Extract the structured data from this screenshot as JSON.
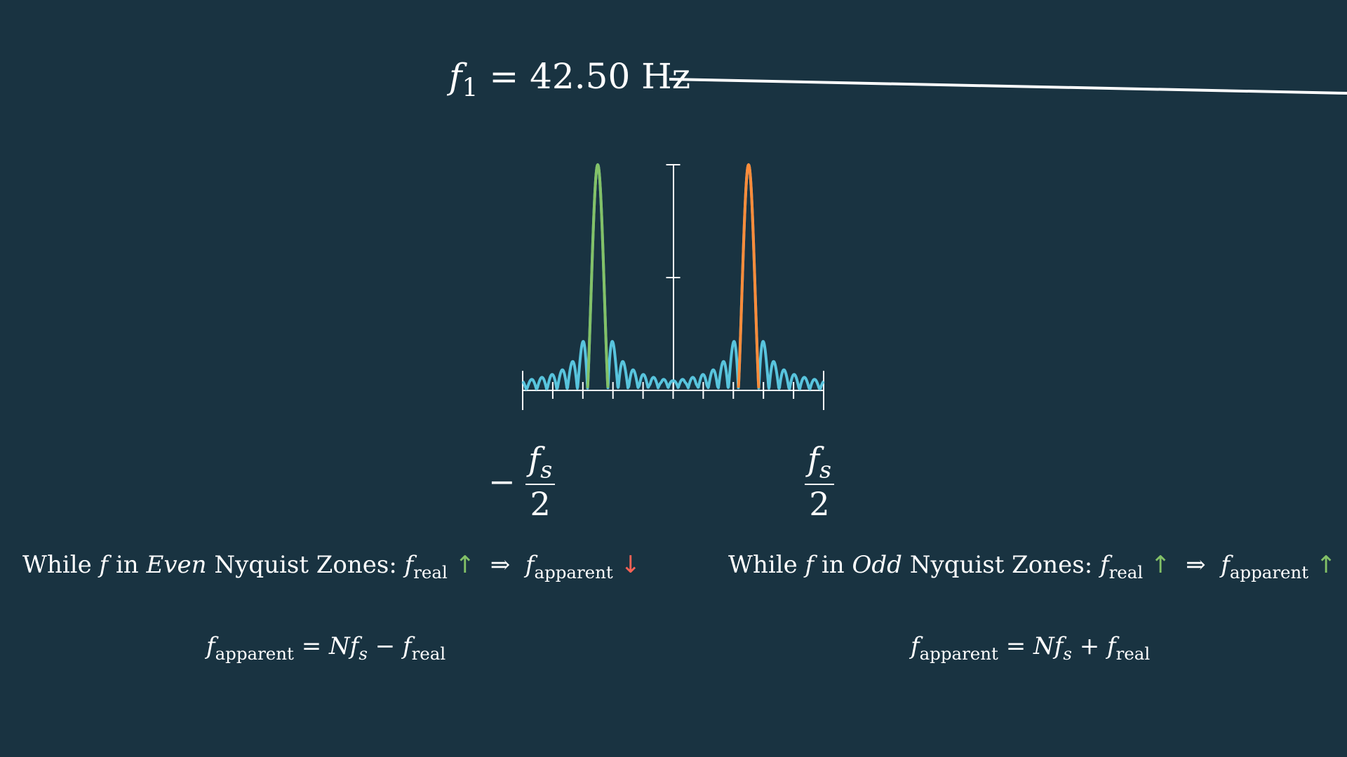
{
  "header": {
    "f1_symbol": "f",
    "f1_subscript": "1",
    "f1_value": "= 42.50 Hz"
  },
  "axis": {
    "minus_sign": "−",
    "left_num": "f",
    "left_num_sub": "s",
    "left_den": "2",
    "right_num": "f",
    "right_num_sub": "s",
    "right_den": "2"
  },
  "zones": {
    "even": {
      "prefix": "While",
      "var": "f",
      "in_word": "in",
      "zone_name": "Even",
      "suffix": "Nyquist Zones:",
      "lhs": "f",
      "lhs_sub": "real",
      "lhs_arrow": "↑",
      "implies": "⇒",
      "rhs": "f",
      "rhs_sub": "apparent",
      "rhs_arrow": "↓"
    },
    "odd": {
      "prefix": "While",
      "var": "f",
      "in_word": "in",
      "zone_name": "Odd",
      "suffix": "Nyquist Zones:",
      "lhs": "f",
      "lhs_sub": "real",
      "lhs_arrow": "↑",
      "implies": "⇒",
      "rhs": "f",
      "rhs_sub": "apparent",
      "rhs_arrow": "↑"
    }
  },
  "formulas": {
    "even": {
      "lhs": "f",
      "lhs_sub": "apparent",
      "middle": "= N",
      "fs": "f",
      "fs_sub": "s",
      "op": "−",
      "rhs": "f",
      "rhs_sub": "real"
    },
    "odd": {
      "lhs": "f",
      "lhs_sub": "apparent",
      "middle": "= N",
      "fs": "f",
      "fs_sub": "s",
      "op": "+",
      "rhs": "f",
      "rhs_sub": "real"
    }
  },
  "colors": {
    "background": "#193341",
    "spectrum": "#58c4dd",
    "even_peak": "#83c167",
    "odd_peak": "#ff8c3a",
    "up_arrow": "#83c167",
    "down_arrow": "#fc6255"
  }
}
